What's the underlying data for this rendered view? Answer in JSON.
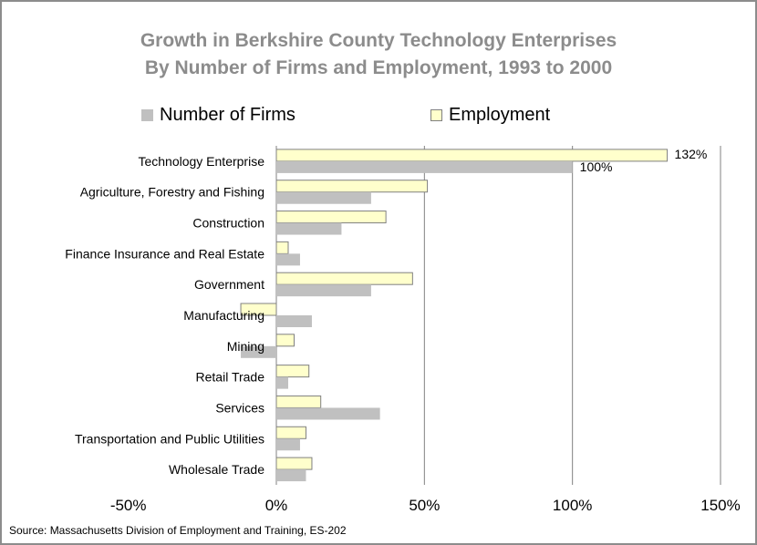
{
  "chart_data": {
    "type": "bar",
    "orientation": "horizontal",
    "title_line1": "Growth in Berkshire County Technology Enterprises",
    "title_line2": "By Number of Firms and Employment, 1993 to 2000",
    "categories": [
      "Technology Enterprise",
      "Agriculture, Forestry and Fishing",
      "Construction",
      "Finance Insurance and Real Estate",
      "Government",
      "Manufacturing",
      "Mining",
      "Retail Trade",
      "Services",
      "Transportation and Public Utilities",
      "Wholesale Trade"
    ],
    "series": [
      {
        "name": "Number of Firms",
        "color": "#c0c0c0",
        "values": [
          100,
          32,
          22,
          8,
          32,
          12,
          -12,
          4,
          35,
          8,
          10
        ]
      },
      {
        "name": "Employment",
        "color": "#ffffcc",
        "border": "#808080",
        "values": [
          132,
          51,
          37,
          4,
          46,
          -12,
          6,
          11,
          15,
          10,
          12
        ]
      }
    ],
    "data_labels": [
      {
        "series": "Employment",
        "category": "Technology Enterprise",
        "text": "132%"
      },
      {
        "series": "Number of Firms",
        "category": "Technology Enterprise",
        "text": "100%"
      }
    ],
    "xlim": [
      -50,
      150
    ],
    "xticks": [
      -50,
      0,
      50,
      100,
      150
    ],
    "xtick_labels": [
      "-50%",
      "0%",
      "50%",
      "100%",
      "150%"
    ],
    "grid": "vertical",
    "legend_position": "top",
    "source": "Source: Massachusetts Division of Employment and Training, ES-202"
  }
}
